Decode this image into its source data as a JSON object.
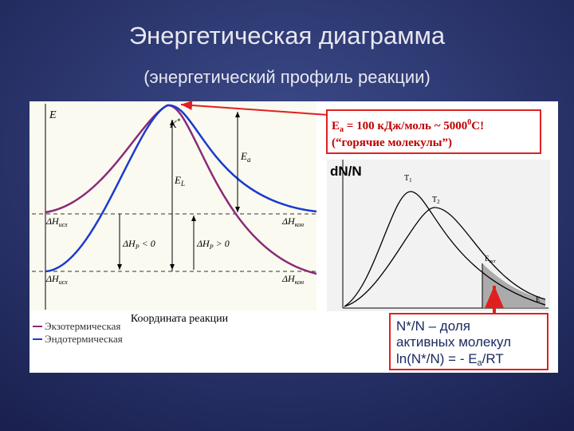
{
  "header": {
    "title": "Энергетическая диаграмма",
    "subtitle": "(энергетический профиль реакции)"
  },
  "energy_diagram": {
    "axis_label": "E",
    "activated_complex": {
      "symbol": "K",
      "sup": "*"
    },
    "activation_energy": {
      "symbol": "E",
      "sub": "a"
    },
    "reverse_energy": {
      "symbol": "E",
      "sub": "L"
    },
    "levels": [
      {
        "symbol": "ΔH",
        "sub": "исх"
      },
      {
        "symbol": "ΔH",
        "sub": "кон"
      },
      {
        "symbol": "ΔH",
        "sub": "исх"
      },
      {
        "symbol": "ΔH",
        "sub": "кон"
      }
    ],
    "enthalpy_arrows": [
      {
        "symbol": "ΔH",
        "sub": "P",
        "relation": " < 0"
      },
      {
        "symbol": "ΔH",
        "sub": "P",
        "relation": " > 0"
      }
    ],
    "x_label": "Координата реакции",
    "legend": [
      "Экзотермическая",
      "Эндотермическая"
    ]
  },
  "note": {
    "line1": [
      "E",
      "a",
      " = 100 кДж/моль ~ 5000",
      "0",
      "C!"
    ],
    "line2": "(“горячие молекулы”)"
  },
  "distribution": {
    "y_label": "dN/N",
    "curves": [
      {
        "symbol": "T",
        "sub": "1"
      },
      {
        "symbol": "T",
        "sub": "2"
      }
    ],
    "threshold": {
      "symbol": "E",
      "sub": "акт"
    },
    "x_label": "E"
  },
  "fraction_box": {
    "line1": "N*/N – доля",
    "line2": "активных молекул",
    "line3": [
      "ln(N*/N) = - E",
      "a",
      "/RT"
    ]
  }
}
